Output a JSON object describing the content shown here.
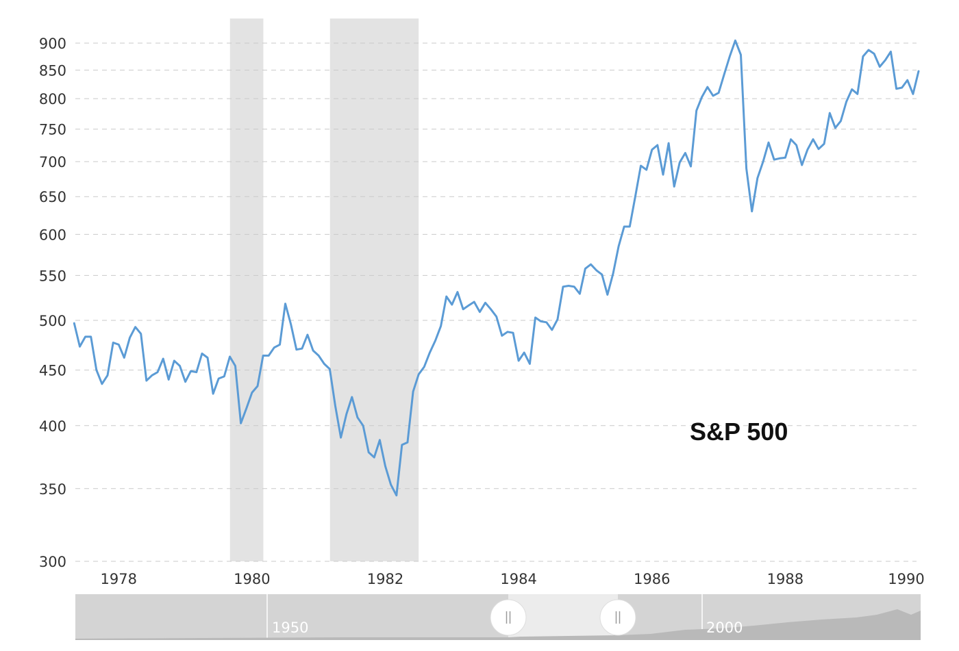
{
  "chart_data": {
    "type": "line",
    "title": "S&P 500",
    "xlabel": "",
    "ylabel": "",
    "xlim": [
      1977.35,
      1990.0
    ],
    "ylim": [
      300,
      900
    ],
    "y_scale": "log",
    "grid": "horizontal dashed",
    "yticks": [
      300,
      350,
      400,
      450,
      500,
      550,
      600,
      650,
      700,
      750,
      800,
      850,
      900
    ],
    "ytick_labels": [
      "300",
      "350",
      "400",
      "450",
      "500",
      "550",
      "600",
      "650",
      "700",
      "750",
      "800",
      "850",
      "900"
    ],
    "xticks": [
      1978,
      1980,
      1982,
      1984,
      1986,
      1988,
      1990
    ],
    "xtick_labels": [
      "1978",
      "1980",
      "1982",
      "1984",
      "1986",
      "1988",
      "1990"
    ],
    "recession_bands": [
      [
        1979.67,
        1980.17
      ],
      [
        1981.17,
        1982.5
      ]
    ],
    "series": [
      {
        "color": "#5b9bd5",
        "x": [
          1977.333,
          1977.417,
          1977.5,
          1977.583,
          1977.667,
          1977.75,
          1977.833,
          1977.917,
          1978.0,
          1978.083,
          1978.167,
          1978.25,
          1978.333,
          1978.417,
          1978.5,
          1978.583,
          1978.667,
          1978.75,
          1978.833,
          1978.917,
          1979.0,
          1979.083,
          1979.167,
          1979.25,
          1979.333,
          1979.417,
          1979.5,
          1979.583,
          1979.667,
          1979.75,
          1979.833,
          1979.917,
          1980.0,
          1980.083,
          1980.167,
          1980.25,
          1980.333,
          1980.417,
          1980.5,
          1980.583,
          1980.667,
          1980.75,
          1980.833,
          1980.917,
          1981.0,
          1981.083,
          1981.167,
          1981.25,
          1981.333,
          1981.417,
          1981.5,
          1981.583,
          1981.667,
          1981.75,
          1981.833,
          1981.917,
          1982.0,
          1982.083,
          1982.167,
          1982.25,
          1982.333,
          1982.417,
          1982.5,
          1982.583,
          1982.667,
          1982.75,
          1982.833,
          1982.917,
          1983.0,
          1983.083,
          1983.167,
          1983.25,
          1983.333,
          1983.417,
          1983.5,
          1983.583,
          1983.667,
          1983.75,
          1983.833,
          1983.917,
          1984.0,
          1984.083,
          1984.167,
          1984.25,
          1984.333,
          1984.417,
          1984.5,
          1984.583,
          1984.667,
          1984.75,
          1984.833,
          1984.917,
          1985.0,
          1985.083,
          1985.167,
          1985.25,
          1985.333,
          1985.417,
          1985.5,
          1985.583,
          1985.667,
          1985.75,
          1985.833,
          1985.917,
          1986.0,
          1986.083,
          1986.167,
          1986.25,
          1986.333,
          1986.417,
          1986.5,
          1986.583,
          1986.667,
          1986.75,
          1986.833,
          1986.917,
          1987.0,
          1987.083,
          1987.167,
          1987.25,
          1987.333,
          1987.417,
          1987.5,
          1987.583,
          1987.667,
          1987.75,
          1987.833,
          1987.917,
          1988.0,
          1988.083,
          1988.167,
          1988.25,
          1988.333,
          1988.417,
          1988.5,
          1988.583,
          1988.667,
          1988.75,
          1988.833,
          1988.917,
          1989.0,
          1989.083,
          1989.167,
          1989.25,
          1989.333,
          1989.417,
          1989.5,
          1989.583,
          1989.667,
          1989.75,
          1989.833,
          1989.917,
          1990.0
        ],
        "y": [
          497,
          473,
          483,
          483,
          450,
          437,
          445,
          477,
          475,
          462,
          482,
          493,
          486,
          440,
          445,
          448,
          461,
          441,
          459,
          454,
          439,
          449,
          448,
          466,
          462,
          428,
          442,
          444,
          463,
          454,
          402,
          415,
          429,
          435,
          464,
          464,
          472,
          475,
          518,
          496,
          470,
          471,
          485,
          469,
          464,
          456,
          451,
          417,
          390,
          410,
          425,
          407,
          400,
          378,
          374,
          388,
          367,
          353,
          345,
          384,
          386,
          430,
          446,
          453,
          467,
          479,
          494,
          526,
          517,
          531,
          512,
          516,
          520,
          509,
          519,
          512,
          504,
          484,
          488,
          487,
          459,
          467,
          456,
          503,
          499,
          498,
          490,
          501,
          537,
          538,
          537,
          529,
          558,
          563,
          556,
          551,
          528,
          552,
          585,
          610,
          610,
          650,
          694,
          688,
          718,
          725,
          681,
          728,
          664,
          699,
          713,
          693,
          780,
          803,
          820,
          805,
          810,
          842,
          875,
          905,
          878,
          690,
          630,
          676,
          700,
          729,
          703,
          705,
          706,
          734,
          725,
          695,
          718,
          734,
          719,
          727,
          776,
          752,
          763,
          795,
          816,
          808,
          875,
          887,
          880,
          856,
          868,
          884,
          817,
          819,
          832,
          808,
          848
        ]
      }
    ]
  },
  "navigator": {
    "labels": [
      "1950",
      "2000"
    ]
  }
}
